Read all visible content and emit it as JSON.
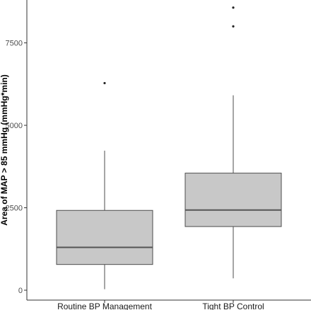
{
  "chart_data": {
    "type": "boxplot",
    "title": "",
    "xlabel": "",
    "ylabel": "Area of MAP > 85 mmHg (mmHg*min)",
    "ylim": [
      -300,
      8800
    ],
    "yticks": [
      0,
      2500,
      5000,
      7500
    ],
    "ytick_labels": [
      "0",
      "2500",
      "5000",
      "7500"
    ],
    "grid": false,
    "box_fill": "#c8c8c8",
    "box_stroke": "#4d4d4d",
    "median_stroke": "#555555",
    "categories": [
      "Routine BP Management",
      "Tight BP Control"
    ],
    "boxes": [
      {
        "name": "Routine BP Management",
        "whisker_low": 30,
        "q1": 780,
        "median": 1300,
        "q3": 2420,
        "whisker_high": 4230,
        "outliers": [
          6280
        ]
      },
      {
        "name": "Tight BP Control",
        "whisker_low": 360,
        "q1": 1930,
        "median": 2430,
        "q3": 3550,
        "whisker_high": 5910,
        "outliers": [
          8000,
          8570
        ]
      }
    ]
  }
}
